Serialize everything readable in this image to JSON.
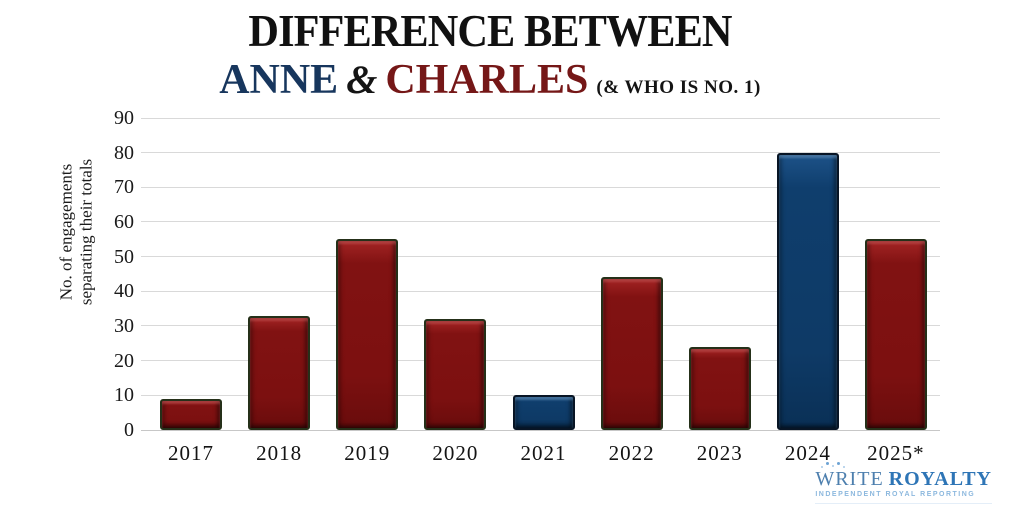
{
  "title": {
    "line1": "DIFFERENCE BETWEEN",
    "anne": "ANNE",
    "ampersand": "&",
    "charles": "CHARLES",
    "subtitle": "(& WHO IS NO. 1)"
  },
  "colors": {
    "anne_blue": "#17365d",
    "charles_red": "#751717",
    "bar_red": "#7c1010",
    "bar_blue": "#0e3a66",
    "gridline": "#d9d9d9",
    "logo_blue": "#2e75b6"
  },
  "chart_data": {
    "type": "bar",
    "title": "DIFFERENCE BETWEEN ANNE & CHARLES (& WHO IS NO. 1)",
    "categories": [
      "2017",
      "2018",
      "2019",
      "2020",
      "2021",
      "2022",
      "2023",
      "2024",
      "2025*"
    ],
    "values": [
      9,
      33,
      55,
      32,
      10,
      44,
      24,
      80,
      55
    ],
    "bar_colors": [
      "red",
      "red",
      "red",
      "red",
      "blue",
      "red",
      "red",
      "blue",
      "red"
    ],
    "xlabel": "",
    "ylabel": "No. of engagements separating their totals",
    "ylabel_lines": [
      "No. of engagements",
      "separating their totals"
    ],
    "ylim": [
      0,
      90
    ],
    "yticks": [
      0,
      10,
      20,
      30,
      40,
      50,
      60,
      70,
      80,
      90
    ],
    "grid": true,
    "legend": false
  },
  "logo": {
    "write": "WRITE",
    "royalty": "ROYALTY",
    "tagline": "INDEPENDENT ROYAL REPORTING"
  }
}
